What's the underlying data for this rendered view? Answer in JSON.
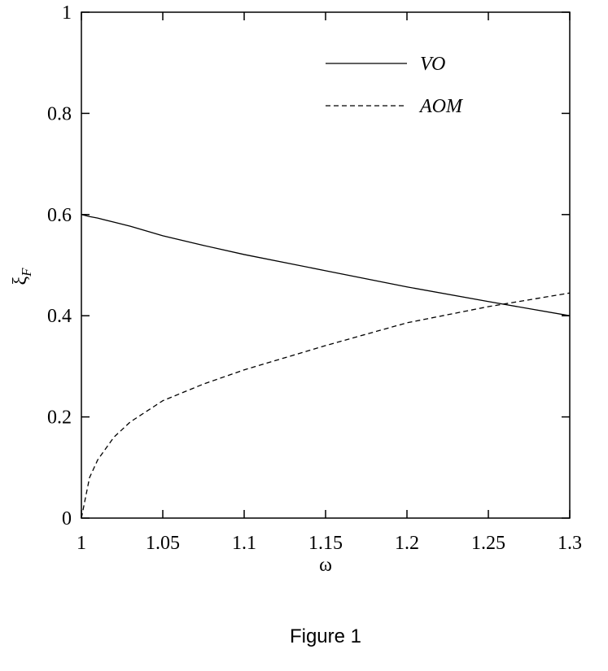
{
  "chart_data": {
    "type": "line",
    "xlabel": "ω",
    "ylabel": "ξ",
    "ylabel_subscript": "F",
    "caption": "Figure 1",
    "x": [
      1,
      1.005,
      1.01,
      1.02,
      1.03,
      1.05,
      1.075,
      1.1,
      1.15,
      1.2,
      1.25,
      1.3
    ],
    "series": [
      {
        "name": "VO",
        "color": "#000000",
        "dash": "solid",
        "values": [
          0.6,
          0.596,
          0.593,
          0.585,
          0.577,
          0.558,
          0.539,
          0.521,
          0.489,
          0.457,
          0.428,
          0.4
        ]
      },
      {
        "name": "AOM",
        "color": "#000000",
        "dash": "dashed",
        "values": [
          0,
          0.08,
          0.115,
          0.16,
          0.19,
          0.232,
          0.265,
          0.293,
          0.341,
          0.386,
          0.418,
          0.445
        ]
      }
    ],
    "xlim": [
      1,
      1.3
    ],
    "xticks": [
      1,
      1.05,
      1.1,
      1.15,
      1.2,
      1.25,
      1.3
    ],
    "ylim": [
      0,
      1
    ],
    "yticks": [
      0,
      0.2,
      0.4,
      0.6,
      0.8,
      1
    ],
    "legend": "top-right",
    "grid": false
  }
}
